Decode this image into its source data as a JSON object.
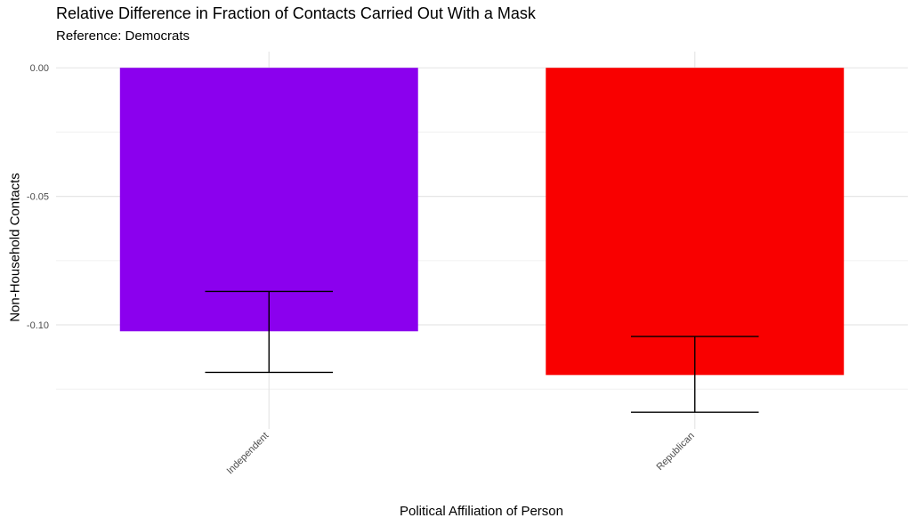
{
  "chart_data": {
    "type": "bar",
    "title": "Relative Difference in Fraction of Contacts Carried Out With a Mask",
    "subtitle": "Reference: Democrats",
    "xlabel": "Political Affiliation of Person",
    "ylabel": "Non-Household Contacts",
    "categories": [
      "Independent",
      "Republican"
    ],
    "values": [
      -0.1025,
      -0.1195
    ],
    "error_low": [
      -0.1185,
      -0.134
    ],
    "error_high": [
      -0.087,
      -0.1045
    ],
    "colors": [
      "#8b00ee",
      "#f90000"
    ],
    "ylim": [
      -0.1405,
      0.0063
    ],
    "y_ticks": [
      0.0,
      -0.05,
      -0.1
    ],
    "y_tick_labels": [
      "0.00",
      "-0.05",
      "-0.10"
    ],
    "grid": true,
    "legend": "none"
  }
}
